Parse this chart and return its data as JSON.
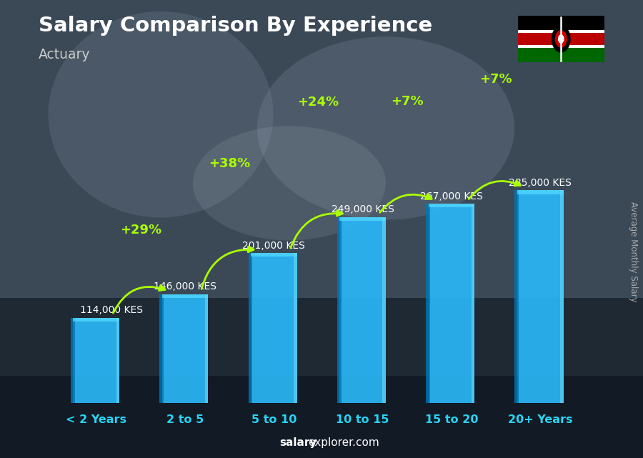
{
  "title": "Salary Comparison By Experience",
  "subtitle": "Actuary",
  "categories": [
    "< 2 Years",
    "2 to 5",
    "5 to 10",
    "10 to 15",
    "15 to 20",
    "20+ Years"
  ],
  "values": [
    114000,
    146000,
    201000,
    249000,
    267000,
    285000
  ],
  "labels": [
    "114,000 KES",
    "146,000 KES",
    "201,000 KES",
    "249,000 KES",
    "267,000 KES",
    "285,000 KES"
  ],
  "pct_changes": [
    "+29%",
    "+38%",
    "+24%",
    "+7%",
    "+7%"
  ],
  "bar_color": "#29b6f6",
  "bar_dark": "#0077b6",
  "bar_highlight": "#7ee8fa",
  "bg_color": "#2a3540",
  "title_color": "#ffffff",
  "subtitle_color": "#cccccc",
  "label_color": "#ffffff",
  "pct_color": "#aaff00",
  "arrow_color": "#aaff00",
  "xlabel_color": "#29d4f5",
  "watermark_bold": "salary",
  "watermark_normal": "explorer.com",
  "ylabel_text": "Average Monthly Salary",
  "fig_width": 9.0,
  "fig_height": 6.41
}
